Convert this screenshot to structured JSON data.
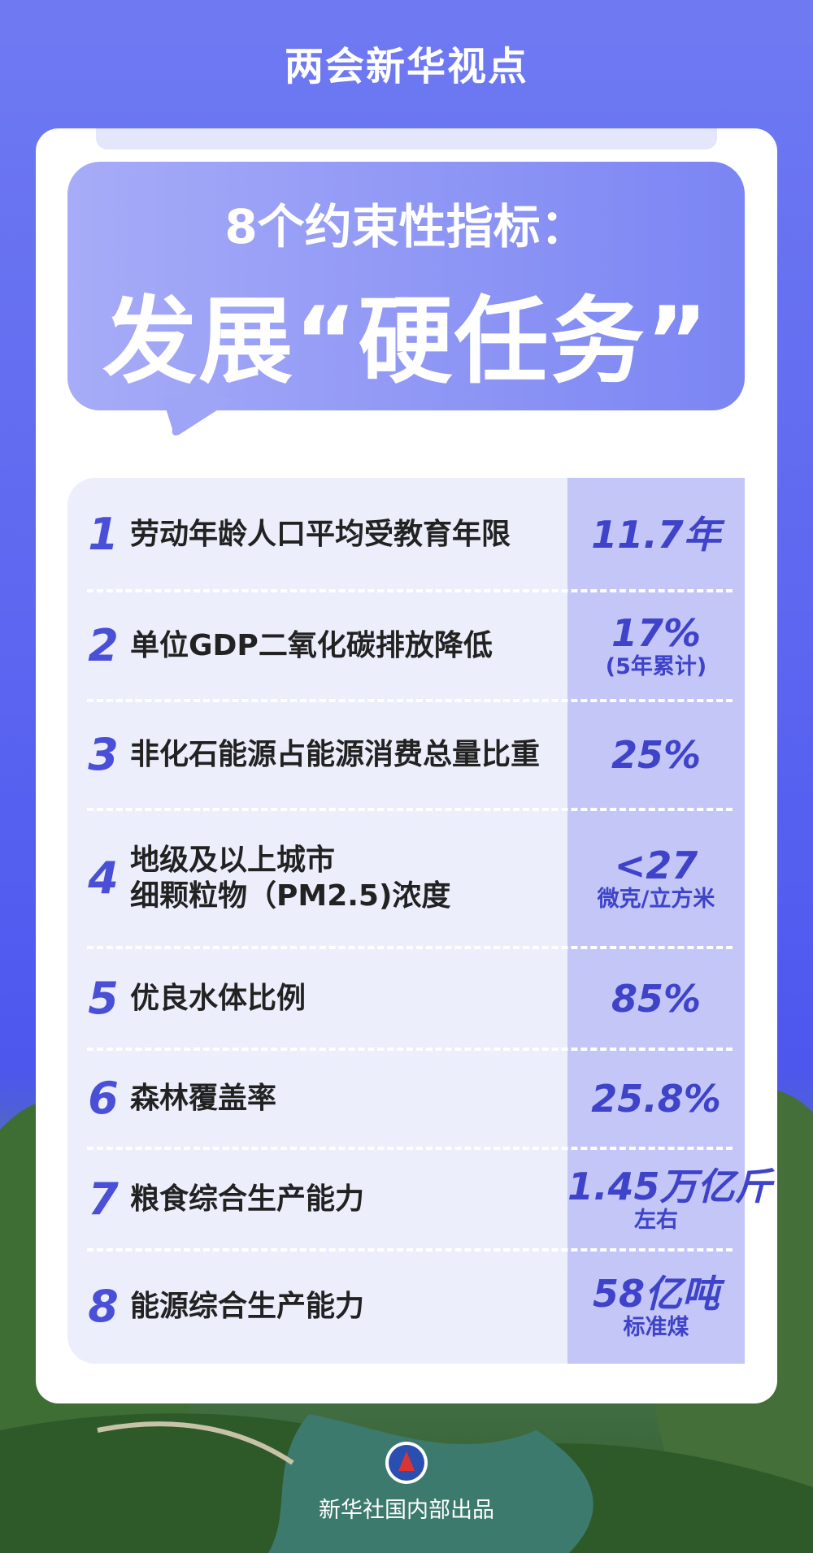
{
  "header": {
    "title": "两会新华视点"
  },
  "banner": {
    "line1": "8个约束性指标：",
    "line2": "发展“硬任务”"
  },
  "table": {
    "rows": [
      {
        "number": "1",
        "label": [
          "劳动年龄人口平均受教育年限"
        ],
        "value": "11.7年"
      },
      {
        "number": "2",
        "label": [
          "单位GDP二氧化碳排放降低"
        ],
        "value": "17%",
        "note": "(5年累计)"
      },
      {
        "number": "3",
        "label": [
          "非化石能源占能源消费总量比重"
        ],
        "value": "25%"
      },
      {
        "number": "4",
        "label": [
          "地级及以上城市",
          "细颗粒物（PM2.5)浓度"
        ],
        "value": "<27",
        "note": "微克/立方米"
      },
      {
        "number": "5",
        "label": [
          "优良水体比例"
        ],
        "value": "85%"
      },
      {
        "number": "6",
        "label": [
          "森林覆盖率"
        ],
        "value": "25.8%"
      },
      {
        "number": "7",
        "label": [
          "粮食综合生产能力"
        ],
        "value": "1.45万亿斤",
        "note": "左右"
      },
      {
        "number": "8",
        "label": [
          "能源综合生产能力"
        ],
        "value": "58亿吨",
        "note": "标准煤"
      }
    ]
  },
  "footer": {
    "credit": "新华社国内部出品"
  }
}
